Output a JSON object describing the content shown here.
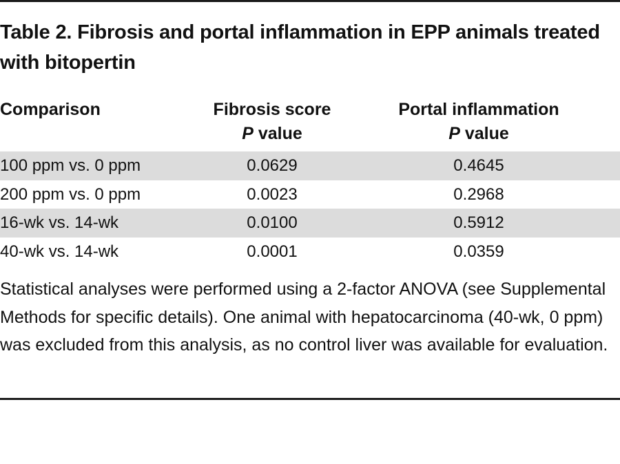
{
  "title": "Table 2. Fibrosis and portal inflammation in EPP animals treated with bitopertin",
  "columns": {
    "comparison": "Comparison",
    "fibrosis": "Fibrosis score",
    "portal": "Portal inflammation",
    "p_italic": "P",
    "p_suffix": " value"
  },
  "rows": [
    {
      "comparison": "100 ppm vs. 0 ppm",
      "fibrosis": "0.0629",
      "portal": "0.4645"
    },
    {
      "comparison": "200 ppm vs. 0 ppm",
      "fibrosis": "0.0023",
      "portal": "0.2968"
    },
    {
      "comparison": "16-wk vs. 14-wk",
      "fibrosis": "0.0100",
      "portal": "0.5912"
    },
    {
      "comparison": "40-wk vs. 14-wk",
      "fibrosis": "0.0001",
      "portal": "0.0359"
    }
  ],
  "footnote": "Statistical analyses  were performed using a 2-factor ANOVA (see Supplemental Methods for specific details). One animal with hepatocarcinoma (40-wk, 0 ppm) was excluded from this analysis, as no control liver was available for evaluation.",
  "colors": {
    "row_shade": "#dcdcdc",
    "rule": "#1a1a1a",
    "text": "#111111"
  }
}
